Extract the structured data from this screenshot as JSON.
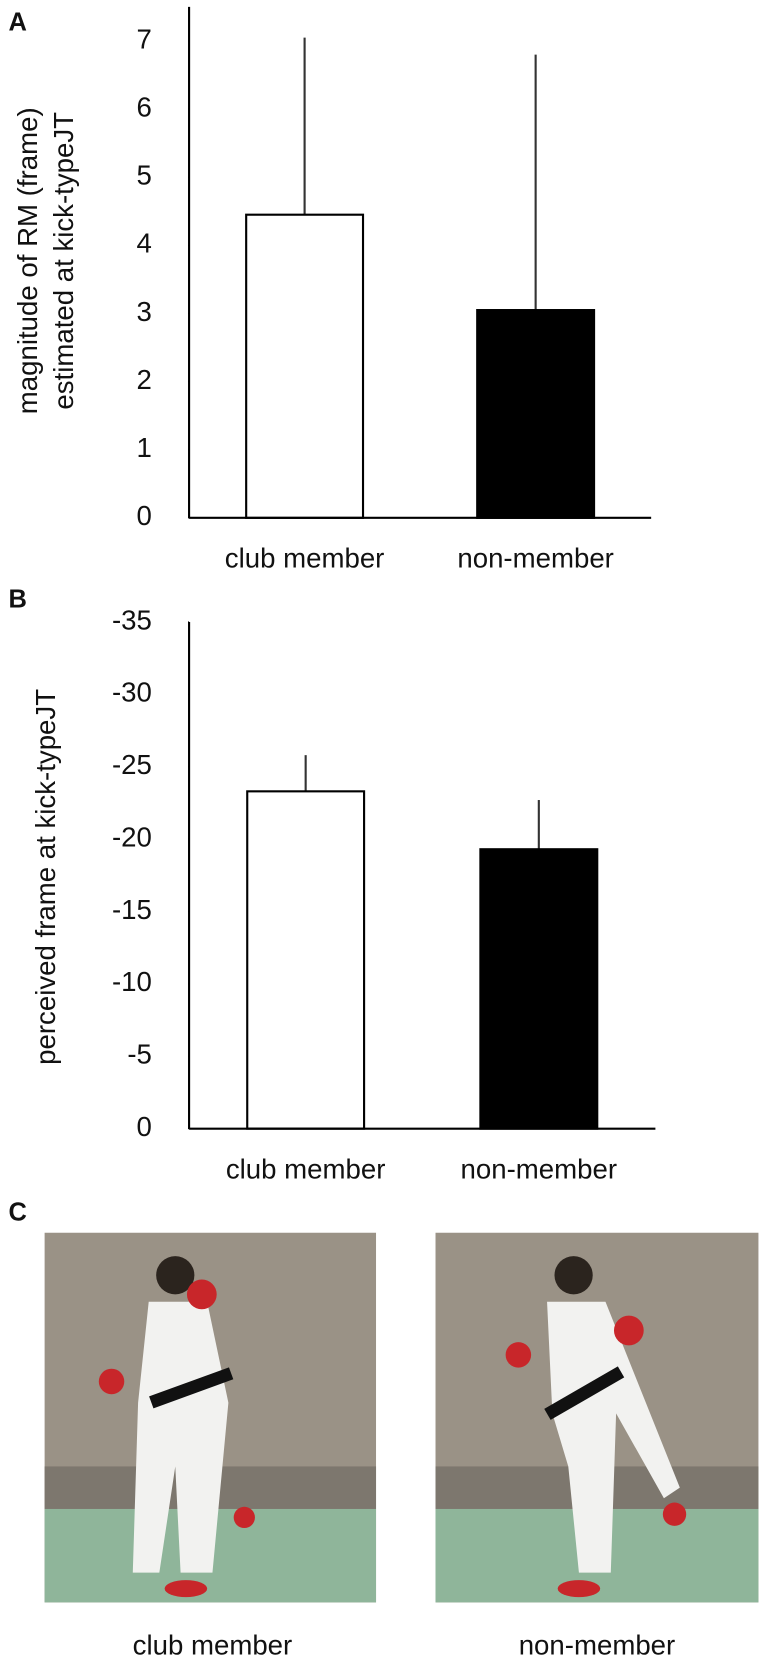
{
  "chart_data": [
    {
      "type": "bar",
      "panel": "A",
      "y_label": [
        "magnitude of RM (frame)",
        "estimated at kick-typeJT"
      ],
      "categories": [
        "club member",
        "non-member"
      ],
      "values": [
        4.45,
        3.05
      ],
      "errors": [
        2.6,
        3.75
      ],
      "colors": [
        "#ffffff",
        "#000000"
      ],
      "ylim": [
        0,
        7.5
      ],
      "yticks": [
        0,
        1,
        2,
        3,
        4,
        5,
        6,
        7
      ]
    },
    {
      "type": "bar",
      "panel": "B",
      "y_label": [
        "perceived frame at kick-typeJT"
      ],
      "categories": [
        "club member",
        "non-member"
      ],
      "values": [
        -23.3,
        -19.3
      ],
      "errors": [
        2.5,
        3.4
      ],
      "colors": [
        "#ffffff",
        "#000000"
      ],
      "ylim": [
        0,
        -35
      ],
      "yticks": [
        0,
        -5,
        -10,
        -15,
        -20,
        -25,
        -30,
        -35
      ]
    }
  ],
  "panel_c": {
    "label": "C",
    "captions": [
      "club member",
      "non-member"
    ]
  }
}
